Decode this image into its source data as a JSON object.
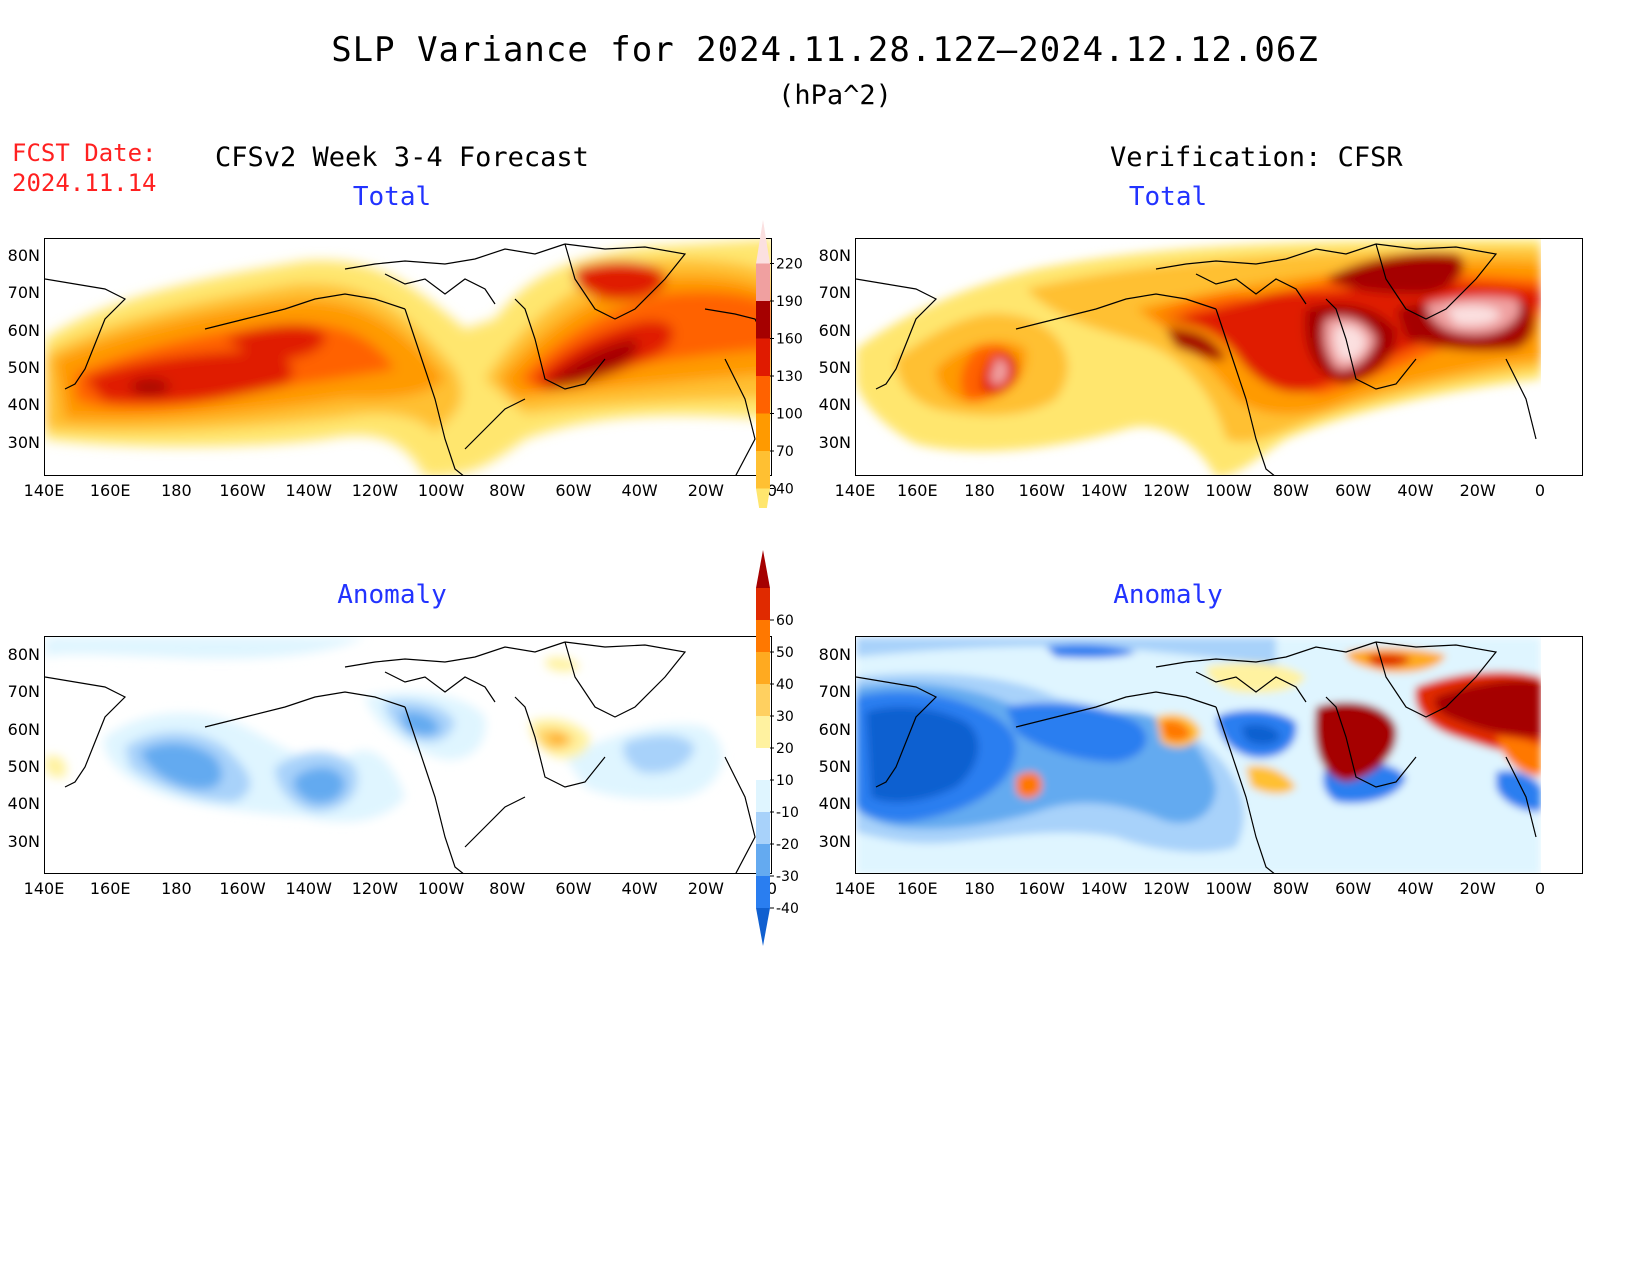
{
  "header": {
    "title": "SLP Variance for 2024.11.28.12Z—2024.12.12.06Z",
    "units": "(hPa^2)",
    "fcst_date_label": "FCST Date:",
    "fcst_date_value": "2024.11.14",
    "left_heading": "CFSv2 Week 3-4 Forecast",
    "right_heading": "Verification: CFSR"
  },
  "panels": {
    "fc_total_title": "Total",
    "obs_total_title": "Total",
    "fc_anom_title": "Anomaly",
    "obs_anom_title": "Anomaly"
  },
  "axes": {
    "lat_labels": [
      "80N",
      "70N",
      "60N",
      "50N",
      "40N",
      "30N"
    ],
    "lon_labels": [
      "140E",
      "160E",
      "180",
      "160W",
      "140W",
      "120W",
      "100W",
      "80W",
      "60W",
      "40W",
      "20W",
      "0"
    ]
  },
  "colorbar_total": {
    "levels": [
      "40",
      "70",
      "100",
      "130",
      "160",
      "190",
      "220"
    ],
    "colors": [
      "#ffe66e",
      "#ffc032",
      "#ff9a00",
      "#ff6200",
      "#e01b00",
      "#a50000",
      "#f0a0a0",
      "#fbe0e0"
    ]
  },
  "colorbar_anomaly": {
    "levels": [
      "-40",
      "-30",
      "-20",
      "-10",
      "10",
      "20",
      "30",
      "40",
      "50",
      "60"
    ],
    "colors": [
      "#1060d0",
      "#2a7ef0",
      "#64aaf0",
      "#a8d2fa",
      "#dff5ff",
      "#ffffff",
      "#fff2a0",
      "#ffd060",
      "#ffaa20",
      "#ff7800",
      "#e02a00",
      "#a50000"
    ]
  }
}
